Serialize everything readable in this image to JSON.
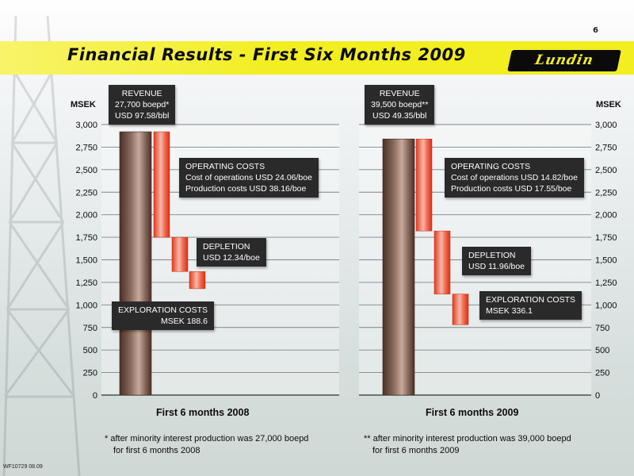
{
  "page": {
    "number": "6",
    "title": "Financial Results - First Six Months 2009",
    "logo_text": "Lundin",
    "doc_code": "WF10729 08.09"
  },
  "axes": {
    "left_unit": "MSEK",
    "right_unit": "MSEK",
    "ticks": [
      "3,000",
      "2,750",
      "2,500",
      "2,250",
      "2,000",
      "1,750",
      "1,500",
      "1,250",
      "1,000",
      "750",
      "500",
      "250",
      "0"
    ]
  },
  "colors": {
    "revenue_bar": "#6b4a3d",
    "cost_bar": "#ee4a35",
    "yellow_band": "#f2ee1f",
    "callout_bg": "#2a2a2a"
  },
  "chart_data": [
    {
      "type": "bar",
      "subtype": "waterfall",
      "xlabel": "First 6 months 2008",
      "ylim": [
        0,
        3000
      ],
      "ylabel": "MSEK",
      "grid": true,
      "revenue": {
        "label": "REVENUE",
        "line1": "27,700 boepd*",
        "line2": "USD 97.58/bbl",
        "value": 2920
      },
      "steps": [
        {
          "label": "OPERATING COSTS",
          "detail1": "Cost of operations USD 24.06/boe",
          "detail2": "Production costs USD 38.16/boe",
          "start": 2920,
          "end": 1750
        },
        {
          "label": "DEPLETION",
          "detail1": "USD 12.34/boe",
          "start": 1750,
          "end": 1370
        },
        {
          "label": "EXPLORATION COSTS",
          "detail1": "MSEK 188.6",
          "start": 1370,
          "end": 1180
        }
      ],
      "footnote_line1": "* after minority interest production was 27,000 boepd",
      "footnote_line2": "for first 6 months 2008"
    },
    {
      "type": "bar",
      "subtype": "waterfall",
      "xlabel": "First 6 months 2009",
      "ylim": [
        0,
        3000
      ],
      "ylabel": "MSEK",
      "grid": true,
      "revenue": {
        "label": "REVENUE",
        "line1": "39,500 boepd**",
        "line2": "USD 49.35/bbl",
        "value": 2840
      },
      "steps": [
        {
          "label": "OPERATING COSTS",
          "detail1": "Cost of operations USD 14.82/boe",
          "detail2": "Production costs USD 17.55/boe",
          "start": 2840,
          "end": 1820
        },
        {
          "label": "DEPLETION",
          "detail1": "USD 11.96/boe",
          "start": 1820,
          "end": 1120
        },
        {
          "label": "EXPLORATION COSTS",
          "detail1": "MSEK 336.1",
          "start": 1120,
          "end": 780
        }
      ],
      "footnote_line1": "** after minority interest production was 39,000 boepd",
      "footnote_line2": "for first 6 months 2009"
    }
  ]
}
